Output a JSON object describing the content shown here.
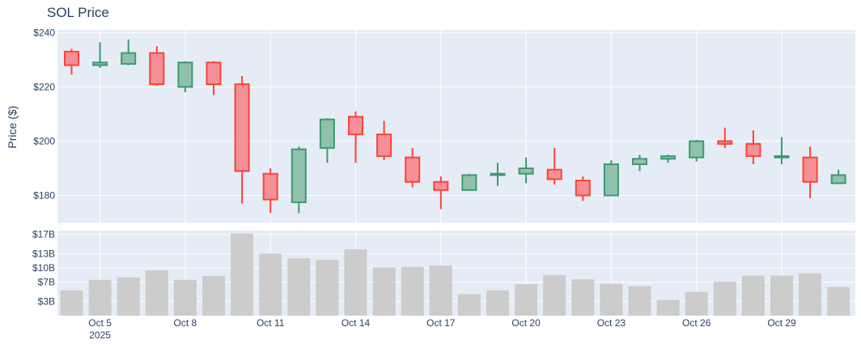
{
  "chart_data": {
    "type": "candlestick",
    "title": "SOL Price",
    "ylabel": "Price ($)",
    "colors": {
      "increasing": "#3d9970",
      "increasing_fill": "#8fc1ad",
      "decreasing": "#ff4136",
      "decreasing_fill": "#f59196",
      "volume": "#cccccc",
      "plot_bg": "#e5ecf6",
      "grid": "#ffffff",
      "text": "#2a3f5f"
    },
    "price_ylim": [
      170,
      241
    ],
    "price_yticks": [
      180,
      200,
      220,
      240
    ],
    "price_ytick_labels": [
      "$180",
      "$200",
      "$220",
      "$240"
    ],
    "volume_ylim": [
      0,
      17.8
    ],
    "volume_yticks": [
      3,
      7,
      10,
      13,
      17
    ],
    "volume_ytick_labels": [
      "$3B",
      "$7B",
      "$10B",
      "$13B",
      "$17B"
    ],
    "x_ticks": [
      {
        "day": 5,
        "label": "Oct 5",
        "sublabel": "2025"
      },
      {
        "day": 8,
        "label": "Oct 8",
        "sublabel": ""
      },
      {
        "day": 11,
        "label": "Oct 11",
        "sublabel": ""
      },
      {
        "day": 14,
        "label": "Oct 14",
        "sublabel": ""
      },
      {
        "day": 17,
        "label": "Oct 17",
        "sublabel": ""
      },
      {
        "day": 20,
        "label": "Oct 20",
        "sublabel": ""
      },
      {
        "day": 23,
        "label": "Oct 23",
        "sublabel": ""
      },
      {
        "day": 26,
        "label": "Oct 26",
        "sublabel": ""
      },
      {
        "day": 29,
        "label": "Oct 29",
        "sublabel": ""
      }
    ],
    "candles": [
      {
        "date": "2025-10-04",
        "open": 233,
        "high": 234,
        "low": 224.5,
        "close": 228,
        "volume": 5.3
      },
      {
        "date": "2025-10-05",
        "open": 228,
        "high": 236.5,
        "low": 227,
        "close": 229,
        "volume": 7.5
      },
      {
        "date": "2025-10-06",
        "open": 228.5,
        "high": 237.5,
        "low": 228,
        "close": 232.5,
        "volume": 8.0
      },
      {
        "date": "2025-10-07",
        "open": 232.5,
        "high": 235,
        "low": 220.5,
        "close": 221,
        "volume": 9.5
      },
      {
        "date": "2025-10-08",
        "open": 220,
        "high": 229.5,
        "low": 218,
        "close": 229,
        "volume": 7.5
      },
      {
        "date": "2025-10-09",
        "open": 229,
        "high": 229.5,
        "low": 217,
        "close": 221,
        "volume": 8.3
      },
      {
        "date": "2025-10-10",
        "open": 221,
        "high": 224,
        "low": 177,
        "close": 189,
        "volume": 17.2
      },
      {
        "date": "2025-10-11",
        "open": 188,
        "high": 190,
        "low": 173.5,
        "close": 178.5,
        "volume": 13.0
      },
      {
        "date": "2025-10-12",
        "open": 177.5,
        "high": 198,
        "low": 173.5,
        "close": 197,
        "volume": 12.0
      },
      {
        "date": "2025-10-13",
        "open": 197.5,
        "high": 208.5,
        "low": 192,
        "close": 208,
        "volume": 11.7
      },
      {
        "date": "2025-10-14",
        "open": 209,
        "high": 211,
        "low": 192,
        "close": 202.5,
        "volume": 13.9
      },
      {
        "date": "2025-10-15",
        "open": 202.5,
        "high": 207.5,
        "low": 193,
        "close": 194.5,
        "volume": 10.1
      },
      {
        "date": "2025-10-16",
        "open": 194,
        "high": 197.5,
        "low": 183,
        "close": 185,
        "volume": 10.2
      },
      {
        "date": "2025-10-17",
        "open": 185,
        "high": 187,
        "low": 175,
        "close": 182,
        "volume": 10.5
      },
      {
        "date": "2025-10-18",
        "open": 182,
        "high": 188,
        "low": 182,
        "close": 187.5,
        "volume": 4.5
      },
      {
        "date": "2025-10-19",
        "open": 187.5,
        "high": 192,
        "low": 183.5,
        "close": 188,
        "volume": 5.3
      },
      {
        "date": "2025-10-20",
        "open": 188,
        "high": 194,
        "low": 184.5,
        "close": 190,
        "volume": 6.6
      },
      {
        "date": "2025-10-21",
        "open": 189.5,
        "high": 197.5,
        "low": 184,
        "close": 186,
        "volume": 8.5
      },
      {
        "date": "2025-10-22",
        "open": 185.5,
        "high": 187,
        "low": 178,
        "close": 180,
        "volume": 7.6
      },
      {
        "date": "2025-10-23",
        "open": 180,
        "high": 193,
        "low": 180,
        "close": 191.5,
        "volume": 6.7
      },
      {
        "date": "2025-10-24",
        "open": 191.5,
        "high": 195,
        "low": 189,
        "close": 193.5,
        "volume": 6.2
      },
      {
        "date": "2025-10-25",
        "open": 193.5,
        "high": 195,
        "low": 192,
        "close": 194.5,
        "volume": 3.3
      },
      {
        "date": "2025-10-26",
        "open": 194,
        "high": 200.5,
        "low": 192.5,
        "close": 200,
        "volume": 5.0
      },
      {
        "date": "2025-10-27",
        "open": 200,
        "high": 205,
        "low": 197.5,
        "close": 199,
        "volume": 7.1
      },
      {
        "date": "2025-10-28",
        "open": 199,
        "high": 204,
        "low": 191.5,
        "close": 194.5,
        "volume": 8.4
      },
      {
        "date": "2025-10-29",
        "open": 194,
        "high": 201.5,
        "low": 191.5,
        "close": 194.5,
        "volume": 8.4
      },
      {
        "date": "2025-10-30",
        "open": 194,
        "high": 198,
        "low": 179,
        "close": 185,
        "volume": 8.9
      },
      {
        "date": "2025-10-31",
        "open": 184.5,
        "high": 189.5,
        "low": 184.5,
        "close": 187.5,
        "volume": 6.0
      }
    ]
  }
}
